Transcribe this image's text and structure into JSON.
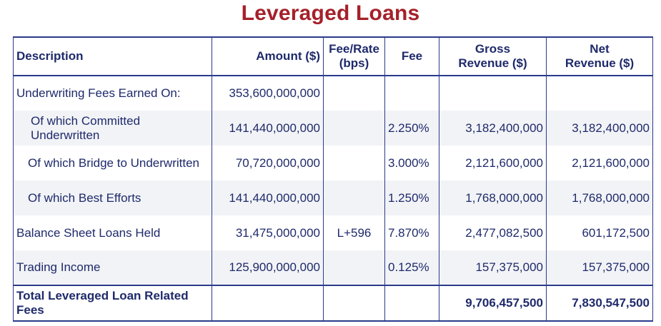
{
  "title": "Leveraged Loans",
  "headers": {
    "description": "Description",
    "amount": "Amount ($)",
    "fee_rate_line1": "Fee/Rate",
    "fee_rate_line2": "(bps)",
    "fee": "Fee",
    "gross_line1": "Gross",
    "gross_line2": "Revenue ($)",
    "net_line1": "Net",
    "net_line2": "Revenue ($)"
  },
  "rows": [
    {
      "description": "Underwriting Fees Earned On:",
      "amount": "353,600,000,000",
      "fee_rate": "",
      "fee": "",
      "gross": "",
      "net": ""
    },
    {
      "description": "Of which Committed Underwritten",
      "amount": "141,440,000,000",
      "fee_rate": "",
      "fee": "2.250%",
      "gross": "3,182,400,000",
      "net": "3,182,400,000"
    },
    {
      "description": "Of which Bridge to Underwritten",
      "amount": "70,720,000,000",
      "fee_rate": "",
      "fee": "3.000%",
      "gross": "2,121,600,000",
      "net": "2,121,600,000"
    },
    {
      "description": "Of which Best Efforts",
      "amount": "141,440,000,000",
      "fee_rate": "",
      "fee": "1.250%",
      "gross": "1,768,000,000",
      "net": "1,768,000,000"
    },
    {
      "description": "Balance Sheet Loans Held",
      "amount": "31,475,000,000",
      "fee_rate": "L+596",
      "fee": "7.870%",
      "gross": "2,477,082,500",
      "net": "601,172,500"
    },
    {
      "description": "Trading Income",
      "amount": "125,900,000,000",
      "fee_rate": "",
      "fee": "0.125%",
      "gross": "157,375,000",
      "net": "157,375,000"
    }
  ],
  "total": {
    "description": "Total Leveraged Loan Related Fees",
    "amount": "",
    "fee_rate": "",
    "fee": "",
    "gross": "9,706,457,500",
    "net": "7,830,547,500"
  },
  "colors": {
    "title": "#a5202a",
    "text": "#1f2a6b",
    "border": "#2b3a8c",
    "stripe": "#f2f3f6"
  }
}
